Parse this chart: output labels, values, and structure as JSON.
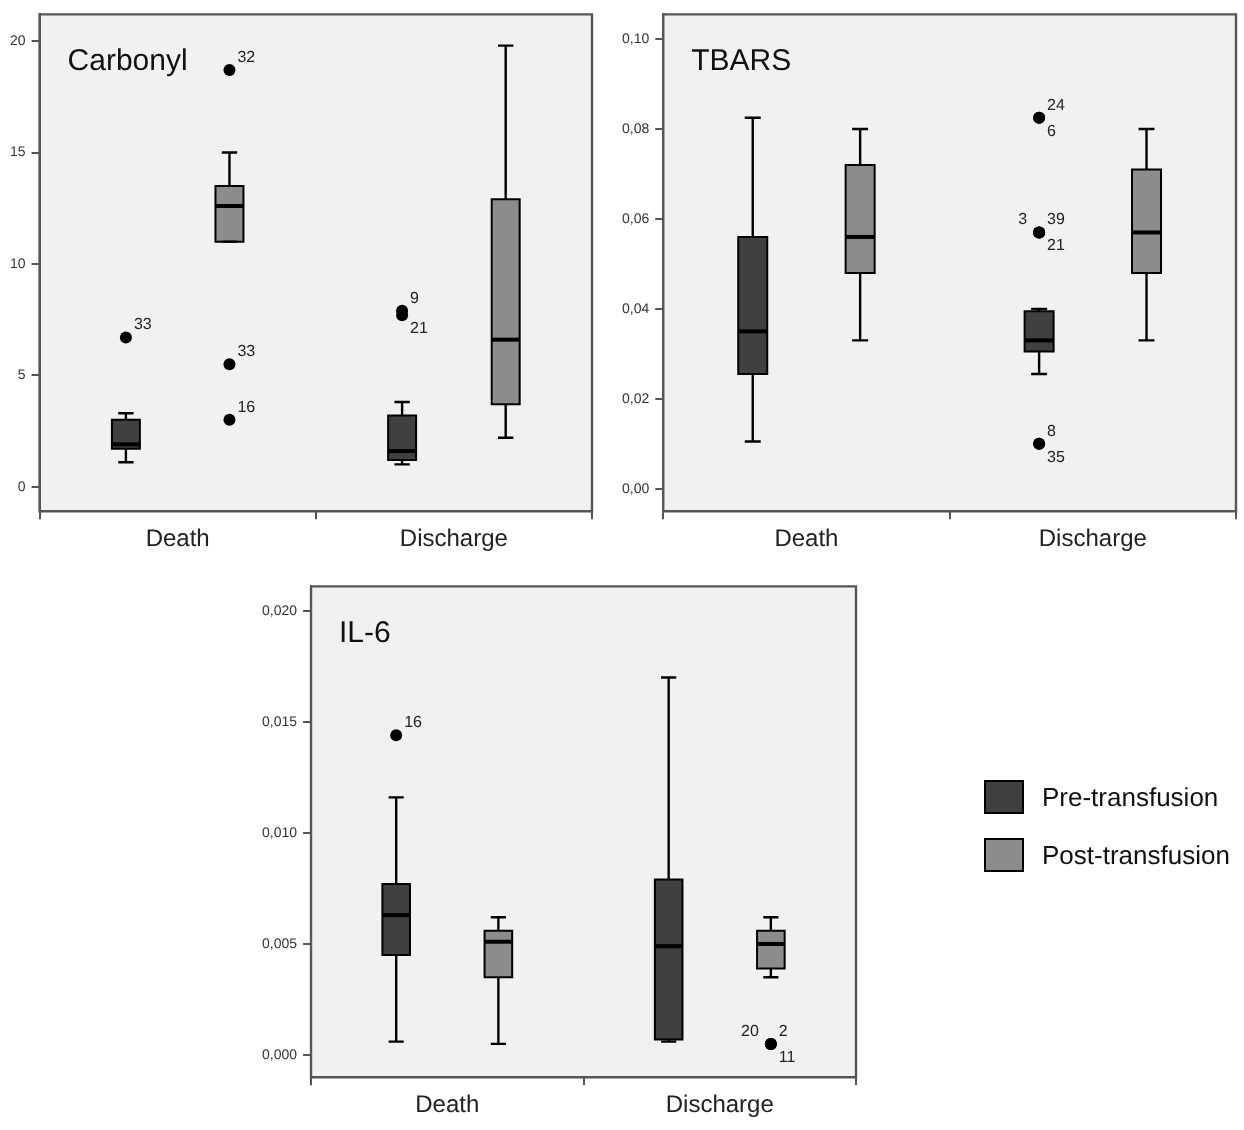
{
  "chart_data": [
    {
      "type": "box",
      "title": "Carbonyl",
      "categories": [
        "Death",
        "Discharge"
      ],
      "ylim": [
        -1.1,
        21.2
      ],
      "yticks": [
        0,
        5,
        10,
        15,
        20
      ],
      "grid": false,
      "series": [
        {
          "color": "#404040",
          "boxes": [
            {
              "low": 1.1,
              "q1": 1.7,
              "median": 1.9,
              "q3": 3.0,
              "high": 3.3,
              "outliers": [
                6.7
              ]
            },
            {
              "low": 1.0,
              "q1": 1.2,
              "median": 1.6,
              "q3": 3.2,
              "high": 3.8,
              "outliers": [
                7.9,
                7.7
              ]
            }
          ]
        },
        {
          "color": "#8c8c8c",
          "boxes": [
            {
              "low": 11,
              "q1": 11,
              "median": 12.6,
              "q3": 13.5,
              "high": 15,
              "outliers": [
                18.7,
                5.5,
                3.0
              ]
            },
            {
              "low": 2.2,
              "q1": 3.7,
              "median": 6.6,
              "q3": 12.9,
              "high": 19.8
            }
          ]
        }
      ],
      "annotations": [
        "33",
        "9",
        "21",
        "32",
        "33",
        "16"
      ]
    },
    {
      "type": "box",
      "title": "TBARS",
      "categories": [
        "Death",
        "Discharge"
      ],
      "ylim": [
        -0.005,
        0.1055
      ],
      "yticks": [
        {
          "value": 0,
          "label": "0,00"
        },
        {
          "value": 0.02,
          "label": "0,02"
        },
        {
          "value": 0.04,
          "label": "0,04"
        },
        {
          "value": 0.06,
          "label": "0,06"
        },
        {
          "value": 0.08,
          "label": "0,08"
        },
        {
          "value": 0.1,
          "label": "0,10"
        }
      ],
      "grid": false,
      "series": [
        {
          "color": "#404040",
          "boxes": [
            {
              "low": 0.0105,
              "q1": 0.0255,
              "median": 0.035,
              "q3": 0.056,
              "high": 0.0825
            },
            {
              "low": 0.0255,
              "q1": 0.0305,
              "median": 0.033,
              "q3": 0.0395,
              "high": 0.04,
              "outliers": [
                0.0825,
                0.0825,
                0.057,
                0.057,
                0.057,
                0.01,
                0.01
              ]
            }
          ]
        },
        {
          "color": "#8c8c8c",
          "boxes": [
            {
              "low": 0.033,
              "q1": 0.048,
              "median": 0.056,
              "q3": 0.072,
              "high": 0.08
            },
            {
              "low": 0.033,
              "q1": 0.048,
              "median": 0.057,
              "q3": 0.071,
              "high": 0.08
            }
          ]
        }
      ],
      "annotations": [
        "24",
        "6",
        "39",
        "21",
        "3",
        "8",
        "35"
      ]
    },
    {
      "type": "box",
      "title": "IL-6",
      "categories": [
        "Death",
        "Discharge"
      ],
      "ylim": [
        -0.001,
        0.0211
      ],
      "yticks": [
        {
          "value": 0,
          "label": "0,000"
        },
        {
          "value": 0.005,
          "label": "0,005"
        },
        {
          "value": 0.01,
          "label": "0,010"
        },
        {
          "value": 0.015,
          "label": "0,015"
        },
        {
          "value": 0.02,
          "label": "0,020"
        }
      ],
      "grid": false,
      "legend": "right",
      "series": [
        {
          "name": "Pre-transfusion",
          "color": "#404040",
          "boxes": [
            {
              "low": 0.0006,
              "q1": 0.0045,
              "median": 0.0063,
              "q3": 0.0077,
              "high": 0.0116,
              "outliers": [
                0.0144
              ]
            },
            {
              "low": 0.0006,
              "q1": 0.0007,
              "median": 0.0049,
              "q3": 0.0079,
              "high": 0.017
            }
          ]
        },
        {
          "name": "Post-transfusion",
          "color": "#8c8c8c",
          "boxes": [
            {
              "low": 0.0005,
              "q1": 0.0035,
              "median": 0.0051,
              "q3": 0.0056,
              "high": 0.0062
            },
            {
              "low": 0.0035,
              "q1": 0.0039,
              "median": 0.005,
              "q3": 0.0056,
              "high": 0.0062,
              "outliers": [
                0.0005,
                0.0005,
                0.0005
              ]
            }
          ]
        }
      ],
      "annotations": [
        "16",
        "2",
        "11",
        "20"
      ]
    }
  ]
}
